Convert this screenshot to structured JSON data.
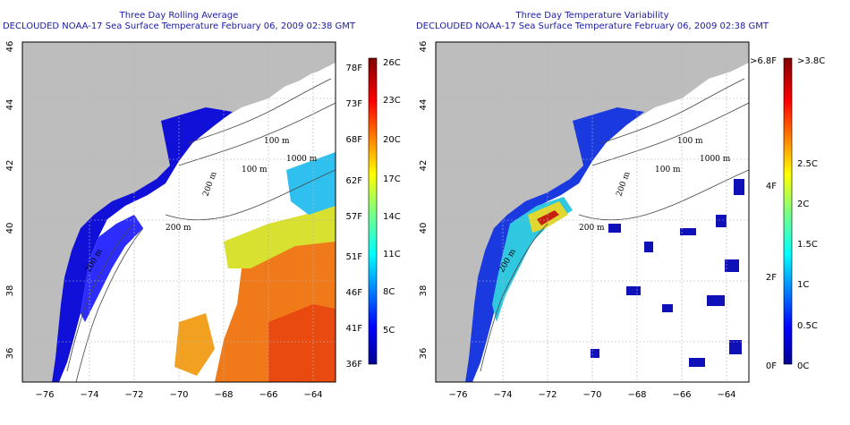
{
  "panels": [
    {
      "title": "Three Day Rolling Average",
      "subtitle": "DECLOUDED NOAA-17 Sea Surface Temperature February 06, 2009 02:38 GMT",
      "lat_ticks": [
        "36",
        "38",
        "40",
        "42",
        "44",
        "46"
      ],
      "lon_ticks": [
        "−76",
        "−74",
        "−72",
        "−70",
        "−68",
        "−66",
        "−64"
      ],
      "contour_labels": [
        "100 m",
        "100 m",
        "200 m",
        "1000 m",
        "200 m",
        "200 m"
      ],
      "colorbar": {
        "fahrenheit": [
          "78F",
          "73F",
          "68F",
          "62F",
          "57F",
          "51F",
          "46F",
          "41F",
          "36F"
        ],
        "celsius": [
          "26C",
          "23C",
          "20C",
          "17C",
          "14C",
          "11C",
          "8C",
          "5C"
        ]
      }
    },
    {
      "title": "Three Day Temperature Variability",
      "subtitle": "DECLOUDED NOAA-17 Sea Surface Temperature February 06, 2009 02:38 GMT",
      "lat_ticks": [
        "36",
        "38",
        "40",
        "42",
        "44",
        "46"
      ],
      "lon_ticks": [
        "−76",
        "−74",
        "−72",
        "−70",
        "−68",
        "−66",
        "−64"
      ],
      "contour_labels": [
        "100 m",
        "100 m",
        "200 m",
        "1000 m",
        "200 m",
        "200 m"
      ],
      "colorbar": {
        "fahrenheit": [
          ">6.8F",
          "4F",
          "2F",
          "0F"
        ],
        "celsius": [
          ">3.8C",
          "2.5C",
          "2C",
          "1.5C",
          "1C",
          "0.5C",
          "0C"
        ]
      }
    }
  ],
  "colors": {
    "land": "#bdbdbd",
    "title": "#1a1aa6",
    "ocean_unobserved": "#ffffff",
    "grid": "#bbbbbb"
  }
}
